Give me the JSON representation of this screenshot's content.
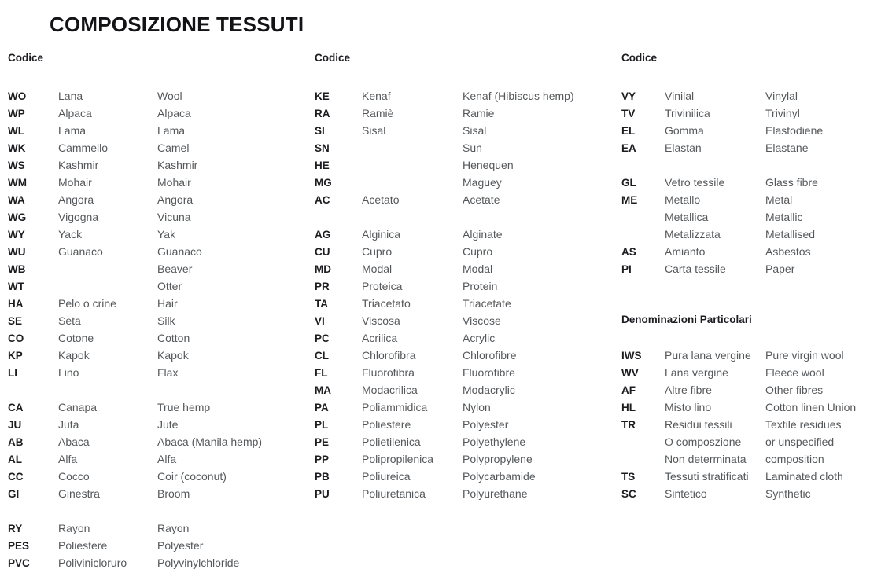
{
  "title": "COMPOSIZIONE TESSUTI",
  "colors": {
    "background": "#ffffff",
    "title_text": "#131316",
    "code_text": "#1d1d21",
    "name_text": "#55585b"
  },
  "columns": [
    {
      "header": "Codice",
      "rows": [
        {
          "code": "WO",
          "it": "Lana",
          "en": "Wool"
        },
        {
          "code": "WP",
          "it": "Alpaca",
          "en": "Alpaca"
        },
        {
          "code": "WL",
          "it": "Lama",
          "en": "Lama"
        },
        {
          "code": "WK",
          "it": "Cammello",
          "en": "Camel"
        },
        {
          "code": "WS",
          "it": "Kashmir",
          "en": "Kashmir"
        },
        {
          "code": "WM",
          "it": "Mohair",
          "en": "Mohair"
        },
        {
          "code": "WA",
          "it": "Angora",
          "en": "Angora"
        },
        {
          "code": "WG",
          "it": "Vigogna",
          "en": "Vicuna"
        },
        {
          "code": "WY",
          "it": "Yack",
          "en": "Yak"
        },
        {
          "code": "WU",
          "it": "Guanaco",
          "en": "Guanaco"
        },
        {
          "code": "WB",
          "it": "",
          "en": "Beaver"
        },
        {
          "code": "WT",
          "it": "",
          "en": "Otter"
        },
        {
          "code": "HA",
          "it": "Pelo o crine",
          "en": "Hair"
        },
        {
          "code": "SE",
          "it": "Seta",
          "en": "Silk"
        },
        {
          "code": "CO",
          "it": "Cotone",
          "en": "Cotton"
        },
        {
          "code": "KP",
          "it": "Kapok",
          "en": "Kapok"
        },
        {
          "code": "LI",
          "it": "Lino",
          "en": "Flax"
        },
        {
          "code": "",
          "it": "",
          "en": ""
        },
        {
          "code": "CA",
          "it": "Canapa",
          "en": "True hemp"
        },
        {
          "code": "JU",
          "it": "Juta",
          "en": "Jute"
        },
        {
          "code": "AB",
          "it": "Abaca",
          "en": "Abaca (Manila hemp)"
        },
        {
          "code": "AL",
          "it": "Alfa",
          "en": "Alfa"
        },
        {
          "code": "CC",
          "it": "Cocco",
          "en": "Coir (coconut)"
        },
        {
          "code": "GI",
          "it": "Ginestra",
          "en": "Broom"
        },
        {
          "code": "",
          "it": "",
          "en": ""
        },
        {
          "code": "RY",
          "it": "Rayon",
          "en": "Rayon"
        },
        {
          "code": "PES",
          "it": "Poliestere",
          "en": "Polyester"
        },
        {
          "code": "PVC",
          "it": "Polivinicloruro",
          "en": "Polyvinylchloride"
        }
      ]
    },
    {
      "header": "Codice",
      "rows": [
        {
          "code": "KE",
          "it": "Kenaf",
          "en": "Kenaf (Hibiscus hemp)"
        },
        {
          "code": "RA",
          "it": "Ramiè",
          "en": "Ramie"
        },
        {
          "code": "SI",
          "it": "Sisal",
          "en": "Sisal"
        },
        {
          "code": "SN",
          "it": "",
          "en": "Sun"
        },
        {
          "code": "HE",
          "it": "",
          "en": "Henequen"
        },
        {
          "code": "MG",
          "it": "",
          "en": "Maguey"
        },
        {
          "code": "AC",
          "it": "Acetato",
          "en": "Acetate"
        },
        {
          "code": "",
          "it": "",
          "en": ""
        },
        {
          "code": "AG",
          "it": "Alginica",
          "en": "Alginate"
        },
        {
          "code": "CU",
          "it": "Cupro",
          "en": "Cupro"
        },
        {
          "code": "MD",
          "it": "Modal",
          "en": "Modal"
        },
        {
          "code": "PR",
          "it": "Proteica",
          "en": "Protein"
        },
        {
          "code": "TA",
          "it": "Triacetato",
          "en": "Triacetate"
        },
        {
          "code": "VI",
          "it": "Viscosa",
          "en": "Viscose"
        },
        {
          "code": "PC",
          "it": "Acrilica",
          "en": "Acrylic"
        },
        {
          "code": "CL",
          "it": "Chlorofibra",
          "en": "Chlorofibre"
        },
        {
          "code": "FL",
          "it": "Fluorofibra",
          "en": "Fluorofibre"
        },
        {
          "code": "MA",
          "it": "Modacrilica",
          "en": "Modacrylic"
        },
        {
          "code": "PA",
          "it": "Poliammidica",
          "en": "Nylon"
        },
        {
          "code": "PL",
          "it": "Poliestere",
          "en": "Polyester"
        },
        {
          "code": "PE",
          "it": "Polietilenica",
          "en": "Polyethylene"
        },
        {
          "code": "PP",
          "it": "Polipropilenica",
          "en": "Polypropylene"
        },
        {
          "code": "PB",
          "it": "Poliureica",
          "en": "Polycarbamide"
        },
        {
          "code": "PU",
          "it": "Poliuretanica",
          "en": "Polyurethane"
        }
      ]
    },
    {
      "header": "Codice",
      "rows": [
        {
          "code": "VY",
          "it": "Vinilal",
          "en": "Vinylal"
        },
        {
          "code": "TV",
          "it": "Trivinilica",
          "en": "Trivinyl"
        },
        {
          "code": "EL",
          "it": "Gomma",
          "en": "Elastodiene"
        },
        {
          "code": "EA",
          "it": "Elastan",
          "en": "Elastane"
        },
        {
          "code": "",
          "it": "",
          "en": ""
        },
        {
          "code": "GL",
          "it": "Vetro tessile",
          "en": "Glass fibre"
        },
        {
          "code": "ME",
          "it": "Metallo",
          "en": "Metal"
        },
        {
          "code": "",
          "it": "Metallica",
          "en": "Metallic"
        },
        {
          "code": "",
          "it": "Metalizzata",
          "en": "Metallised"
        },
        {
          "code": "AS",
          "it": "Amianto",
          "en": "Asbestos"
        },
        {
          "code": "PI",
          "it": "Carta tessile",
          "en": "Paper"
        }
      ],
      "section": {
        "title": "Denominazioni Particolari",
        "rows": [
          {
            "code": "IWS",
            "it": "Pura lana vergine",
            "en": "Pure virgin wool"
          },
          {
            "code": "WV",
            "it": "Lana vergine",
            "en": "Fleece wool"
          },
          {
            "code": "AF",
            "it": "Altre fibre",
            "en": "Other fibres"
          },
          {
            "code": "HL",
            "it": "Misto lino",
            "en": "Cotton linen Union"
          },
          {
            "code": "TR",
            "it": "Residui tessili",
            "en": "Textile residues"
          },
          {
            "code": "",
            "it": "O composzione",
            "en": "or unspecified"
          },
          {
            "code": "",
            "it": "Non determinata",
            "en": "composition"
          },
          {
            "code": "TS",
            "it": "Tessuti stratificati",
            "en": "Laminated cloth"
          },
          {
            "code": "SC",
            "it": "Sintetico",
            "en": "Synthetic"
          }
        ]
      }
    }
  ]
}
